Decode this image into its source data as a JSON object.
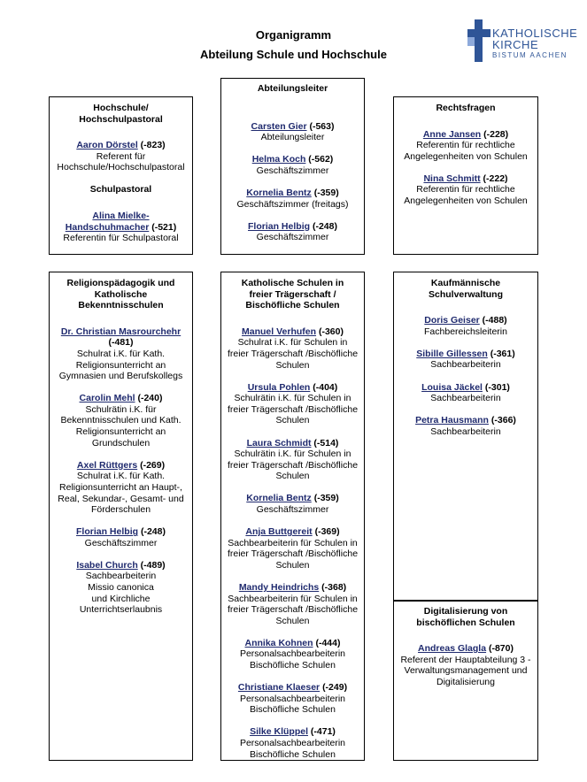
{
  "header": {
    "title": "Organigramm",
    "subtitle": "Abteilung Schule und Hochschule",
    "logo": [
      "KATHOLISCHE",
      "KIRCHE",
      "BISTUM AACHEN"
    ]
  },
  "boxes": [
    {
      "sections": [
        {
          "heading": "Hochschule/ Hochschulpastoral",
          "entries": [
            {
              "name": "Aaron Dörstel",
              "ext": "(-823)",
              "role": [
                "Referent für",
                "Hochschule/Hochschulpastoral"
              ]
            }
          ]
        },
        {
          "heading": "Schulpastoral",
          "entries": [
            {
              "name": "Alina Mielke-Handschuhmacher",
              "ext": "(-521)",
              "role": [
                "Referentin für Schulpastoral"
              ]
            }
          ]
        }
      ]
    },
    {
      "sections": [
        {
          "heading": "Abteilungsleiter",
          "entries": [
            {
              "name": "Carsten Gier",
              "ext": "(-563)",
              "role": [
                "Abteilungsleiter"
              ]
            },
            {
              "name": "Helma Koch",
              "ext": "(-562)",
              "role": [
                "Geschäftszimmer"
              ]
            },
            {
              "name": "Kornelia Bentz",
              "ext": "(-359)",
              "role": [
                "Geschäftszimmer  (freitags)"
              ]
            },
            {
              "name": "Florian Helbig",
              "ext": "(-248)",
              "role": [
                "Geschäftszimmer"
              ]
            }
          ]
        }
      ]
    },
    {
      "sections": [
        {
          "heading": "Rechtsfragen",
          "entries": [
            {
              "name": "Anne Jansen",
              "ext": "(-228)",
              "role": [
                "Referentin für rechtliche",
                "Angelegenheiten von Schulen"
              ]
            },
            {
              "name": "Nina Schmitt",
              "ext": "(-222)",
              "role": [
                "Referentin für rechtliche",
                "Angelegenheiten von Schulen"
              ]
            }
          ]
        }
      ]
    },
    {
      "sections": [
        {
          "heading": "Religionspädagogik und Katholische Bekenntnisschulen",
          "entries": [
            {
              "name": "Dr. Christian Masrourchehr",
              "ext": "(-481)",
              "role": [
                "Schulrat i.K. für Kath.",
                "Religionsunterricht an",
                "Gymnasien und Berufskollegs"
              ]
            },
            {
              "name": "Carolin Mehl",
              "ext": "(-240)",
              "role": [
                "Schulrätin i.K. für",
                "Bekenntnisschulen und Kath.",
                "Religionsunterricht an",
                "Grundschulen"
              ]
            },
            {
              "name": "Axel Rüttgers",
              "ext": "(-269)",
              "role": [
                "Schulrat i.K. für Kath.",
                "Religionsunterricht an Haupt-,",
                "Real, Sekundar-, Gesamt- und",
                "Förderschulen"
              ]
            },
            {
              "name": "Florian Helbig",
              "ext": "(-248)",
              "role": [
                "Geschäftszimmer"
              ]
            },
            {
              "name": "Isabel Church",
              "ext": "(-489)",
              "role": [
                "Sachbearbeiterin",
                "Missio canonica",
                "und Kirchliche",
                "Unterrichtserlaubnis"
              ]
            }
          ]
        }
      ]
    },
    {
      "sections": [
        {
          "heading": "Katholische Schulen in freier Trägerschaft / Bischöfliche Schulen",
          "entries": [
            {
              "name": "Manuel Verhufen",
              "ext": "(-360)",
              "role": [
                "Schulrat i.K. für Schulen in",
                "freier Trägerschaft /Bischöfliche",
                "Schulen"
              ]
            },
            {
              "name": "Ursula Pohlen",
              "ext": "(-404)",
              "role": [
                "Schulrätin i.K. für Schulen in",
                "freier Trägerschaft /Bischöfliche",
                "Schulen"
              ]
            },
            {
              "name": "Laura Schmidt",
              "ext": "(-514)",
              "role": [
                "Schulrätin i.K. für Schulen in",
                "freier Trägerschaft /Bischöfliche",
                "Schulen"
              ]
            },
            {
              "name": "Kornelia Bentz",
              "ext": "(-359)",
              "role": [
                "Geschäftszimmer"
              ]
            },
            {
              "name": "Anja Buttgereit",
              "ext": "(-369)",
              "role": [
                "Sachbearbeiterin für Schulen in",
                "freier Trägerschaft /Bischöfliche",
                "Schulen"
              ]
            },
            {
              "name": "Mandy Heindrichs",
              "ext": "(-368)",
              "role": [
                "Sachbearbeiterin für Schulen in",
                "freier Trägerschaft /Bischöfliche",
                "Schulen"
              ]
            },
            {
              "name": "Annika Kohnen",
              "ext": "(-444)",
              "role": [
                "Personalsachbearbeiterin",
                "Bischöfliche Schulen"
              ]
            },
            {
              "name": "Christiane Klaeser",
              "ext": "(-249)",
              "role": [
                "Personalsachbearbeiterin",
                "Bischöfliche Schulen"
              ]
            },
            {
              "name": "Silke Klüppel",
              "ext": "(-471)",
              "role": [
                "Personalsachbearbeiterin",
                "Bischöfliche Schulen"
              ]
            }
          ]
        }
      ]
    },
    {
      "sections": [
        {
          "heading": "Kaufmännische Schulverwaltung",
          "entries": [
            {
              "name": "Doris Geiser",
              "ext": "(-488)",
              "role": [
                "Fachbereichsleiterin"
              ]
            },
            {
              "name": "Sibille Gillessen",
              "ext": "(-361)",
              "role": [
                "Sachbearbeiterin"
              ]
            },
            {
              "name": "Louisa Jäckel",
              "ext": "(-301)",
              "role": [
                "Sachbearbeiterin"
              ]
            },
            {
              "name": "Petra Hausmann",
              "ext": "(-366)",
              "role": [
                "Sachbearbeiterin"
              ]
            }
          ]
        }
      ]
    },
    {
      "sections": [
        {
          "heading": "Digitalisierung von bischöflichen Schulen",
          "entries": [
            {
              "name": "Andreas Glagla",
              "ext": "(-870)",
              "role": [
                "Referent der Hauptabteilung 3 -",
                "Verwaltungsmanagement und",
                "Digitalisierung"
              ]
            }
          ]
        }
      ]
    }
  ]
}
